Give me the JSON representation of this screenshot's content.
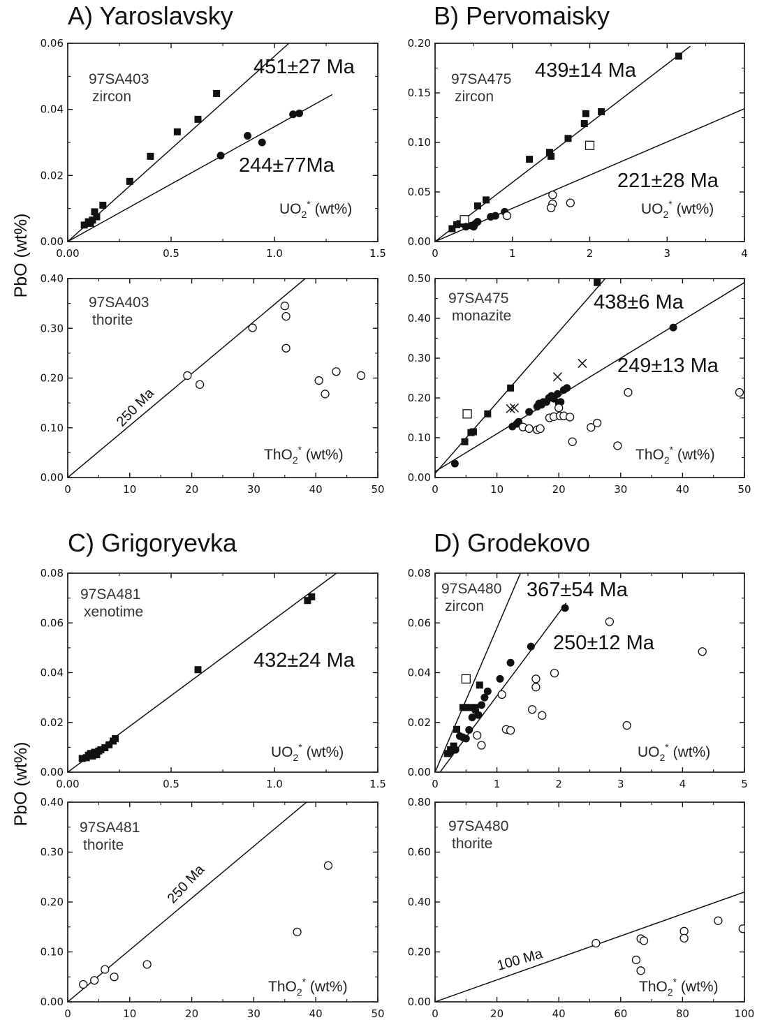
{
  "chart_data": [
    {
      "id": "A-U",
      "type": "scatter",
      "title": "A) Yaroslavsky",
      "sample": "97SA403",
      "mineral": "zircon",
      "xlabel": "UO2* (wt%)",
      "ylabel": "PbO (wt%)",
      "xlim": [
        0,
        1.5
      ],
      "ylim": [
        0,
        0.06
      ],
      "xticks": [
        "0.00",
        "0.5",
        "1.0",
        "1.5"
      ],
      "yticks": [
        "0.00",
        "0.02",
        "0.04",
        "0.06"
      ],
      "series": [
        {
          "marker": "filled-square",
          "points": [
            [
              0.08,
              0.005
            ],
            [
              0.1,
              0.006
            ],
            [
              0.11,
              0.0055
            ],
            [
              0.12,
              0.0065
            ],
            [
              0.13,
              0.009
            ],
            [
              0.14,
              0.0075
            ],
            [
              0.17,
              0.011
            ],
            [
              0.3,
              0.0182
            ],
            [
              0.4,
              0.0258
            ],
            [
              0.53,
              0.0332
            ],
            [
              0.63,
              0.037
            ],
            [
              0.72,
              0.0448
            ]
          ]
        },
        {
          "marker": "filled-circle",
          "points": [
            [
              0.74,
              0.026
            ],
            [
              0.87,
              0.032
            ],
            [
              0.94,
              0.03
            ],
            [
              1.09,
              0.0385
            ],
            [
              1.12,
              0.0388
            ]
          ]
        }
      ],
      "lines": [
        [
          [
            0,
            0
          ],
          [
            1.07,
            0.06
          ]
        ],
        [
          [
            0,
            0
          ],
          [
            1.28,
            0.0445
          ]
        ]
      ],
      "ages": [
        "451±27 Ma",
        "244±77Ma"
      ]
    },
    {
      "id": "B-U",
      "type": "scatter",
      "title": "B) Pervomaisky",
      "sample": "97SA475",
      "mineral": "zircon",
      "xlabel": "UO2* (wt%)",
      "ylabel": "PbO (wt%)",
      "xlim": [
        0,
        4
      ],
      "ylim": [
        0,
        0.2
      ],
      "xticks": [
        "0",
        "1",
        "2",
        "3",
        "4"
      ],
      "yticks": [
        "0.00",
        "0.05",
        "0.10",
        "0.15",
        "0.20"
      ],
      "series": [
        {
          "marker": "filled-square",
          "points": [
            [
              0.22,
              0.013
            ],
            [
              0.28,
              0.017
            ],
            [
              0.32,
              0.018
            ],
            [
              0.55,
              0.036
            ],
            [
              0.66,
              0.042
            ],
            [
              1.22,
              0.083
            ],
            [
              1.48,
              0.09
            ],
            [
              1.5,
              0.086
            ],
            [
              1.72,
              0.104
            ],
            [
              1.93,
              0.119
            ],
            [
              1.95,
              0.129
            ],
            [
              2.15,
              0.131
            ],
            [
              3.15,
              0.187
            ]
          ]
        },
        {
          "marker": "open-square",
          "points": [
            [
              0.38,
              0.022
            ],
            [
              2.0,
              0.097
            ]
          ]
        },
        {
          "marker": "filled-circle",
          "points": [
            [
              0.4,
              0.015
            ],
            [
              0.47,
              0.016
            ],
            [
              0.5,
              0.015
            ],
            [
              0.52,
              0.018
            ],
            [
              0.55,
              0.02
            ],
            [
              0.72,
              0.025
            ],
            [
              0.78,
              0.026
            ],
            [
              0.9,
              0.03
            ]
          ]
        },
        {
          "marker": "open-circle",
          "points": [
            [
              0.93,
              0.026
            ],
            [
              1.52,
              0.047
            ],
            [
              1.52,
              0.038
            ],
            [
              1.5,
              0.034
            ],
            [
              1.75,
              0.039
            ]
          ]
        }
      ],
      "lines": [
        [
          [
            0,
            0
          ],
          [
            3.3,
            0.197
          ]
        ],
        [
          [
            0,
            0
          ],
          [
            4,
            0.134
          ]
        ]
      ],
      "ages": [
        "439±14 Ma",
        "221±28 Ma"
      ]
    },
    {
      "id": "A-Th",
      "type": "scatter",
      "sample": "97SA403",
      "mineral": "thorite",
      "xlabel": "ThO2* (wt%)",
      "ylabel": "PbO (wt%)",
      "xlim": [
        0,
        50
      ],
      "ylim": [
        0,
        0.4
      ],
      "xticks": [
        "0",
        "10",
        "20",
        "30",
        "40",
        "50"
      ],
      "yticks": [
        "0.00",
        "0.10",
        "0.20",
        "0.30",
        "0.40"
      ],
      "series": [
        {
          "marker": "open-circle",
          "points": [
            [
              19.3,
              0.205
            ],
            [
              21.3,
              0.187
            ],
            [
              29.8,
              0.301
            ],
            [
              35,
              0.345
            ],
            [
              35.2,
              0.324
            ],
            [
              35.2,
              0.26
            ],
            [
              40.5,
              0.195
            ],
            [
              41.5,
              0.168
            ],
            [
              43.3,
              0.213
            ],
            [
              47.3,
              0.205
            ]
          ]
        }
      ],
      "lines": [
        [
          [
            0,
            0
          ],
          [
            38.3,
            0.4
          ]
        ]
      ],
      "reference_line_label": "250 Ma"
    },
    {
      "id": "B-Th",
      "type": "scatter",
      "sample": "97SA475",
      "mineral": "monazite",
      "xlabel": "ThO2* (wt%)",
      "ylabel": "PbO (wt%)",
      "xlim": [
        0,
        50
      ],
      "ylim": [
        0,
        0.5
      ],
      "xticks": [
        "0",
        "10",
        "20",
        "30",
        "40",
        "50"
      ],
      "yticks": [
        "0.00",
        "0.10",
        "0.20",
        "0.30",
        "0.40",
        "0.50"
      ],
      "series": [
        {
          "marker": "filled-square",
          "points": [
            [
              4.8,
              0.09
            ],
            [
              5.8,
              0.113
            ],
            [
              6.2,
              0.115
            ],
            [
              8.5,
              0.16
            ],
            [
              12.2,
              0.225
            ],
            [
              26.2,
              0.49
            ]
          ]
        },
        {
          "marker": "open-square",
          "points": [
            [
              5.2,
              0.16
            ]
          ]
        },
        {
          "marker": "filled-circle",
          "points": [
            [
              3.2,
              0.035
            ],
            [
              12.5,
              0.128
            ],
            [
              13.2,
              0.135
            ],
            [
              13.5,
              0.14
            ],
            [
              15.2,
              0.165
            ],
            [
              16.5,
              0.178
            ],
            [
              16.8,
              0.186
            ],
            [
              17.2,
              0.183
            ],
            [
              17.5,
              0.19
            ],
            [
              18,
              0.19
            ],
            [
              18.4,
              0.2
            ],
            [
              18.8,
              0.205
            ],
            [
              19.2,
              0.198
            ],
            [
              19.8,
              0.21
            ],
            [
              20,
              0.187
            ],
            [
              20.3,
              0.19
            ],
            [
              20.8,
              0.22
            ],
            [
              21.3,
              0.225
            ],
            [
              38.5,
              0.377
            ]
          ]
        },
        {
          "marker": "open-circle",
          "points": [
            [
              14.2,
              0.127
            ],
            [
              15.2,
              0.123
            ],
            [
              16.5,
              0.12
            ],
            [
              17,
              0.123
            ],
            [
              18.5,
              0.15
            ],
            [
              19.2,
              0.153
            ],
            [
              20,
              0.175
            ],
            [
              20.2,
              0.155
            ],
            [
              20.8,
              0.155
            ],
            [
              21.8,
              0.152
            ],
            [
              22.2,
              0.09
            ],
            [
              25.2,
              0.126
            ],
            [
              26.2,
              0.137
            ],
            [
              29.5,
              0.08
            ],
            [
              31.2,
              0.214
            ],
            [
              49.2,
              0.214
            ]
          ]
        },
        {
          "marker": "cross",
          "points": [
            [
              12.2,
              0.173
            ],
            [
              12.8,
              0.175
            ],
            [
              19.8,
              0.253
            ],
            [
              23.8,
              0.287
            ]
          ]
        }
      ],
      "lines": [
        [
          [
            0,
            0.01
          ],
          [
            27.5,
            0.5
          ]
        ],
        [
          [
            0,
            0.015
          ],
          [
            50,
            0.49
          ]
        ]
      ],
      "ages": [
        "438±6 Ma",
        "249±13 Ma"
      ]
    },
    {
      "id": "C-U",
      "type": "scatter",
      "title": "C) Grigoryevka",
      "sample": "97SA481",
      "mineral": "xenotime",
      "xlabel": "UO2* (wt%)",
      "ylabel": "PbO (wt%)",
      "xlim": [
        0,
        1.5
      ],
      "ylim": [
        0,
        0.08
      ],
      "xticks": [
        "0.00",
        "0.5",
        "1.0",
        "1.5"
      ],
      "yticks": [
        "0.00",
        "0.02",
        "0.04",
        "0.06",
        "0.08"
      ],
      "series": [
        {
          "marker": "filled-square",
          "points": [
            [
              0.07,
              0.0055
            ],
            [
              0.09,
              0.0058
            ],
            [
              0.1,
              0.0068
            ],
            [
              0.11,
              0.0075
            ],
            [
              0.12,
              0.0065
            ],
            [
              0.13,
              0.008
            ],
            [
              0.14,
              0.007
            ],
            [
              0.15,
              0.0085
            ],
            [
              0.16,
              0.009
            ],
            [
              0.18,
              0.0098
            ],
            [
              0.2,
              0.011
            ],
            [
              0.22,
              0.0125
            ],
            [
              0.23,
              0.0135
            ],
            [
              0.63,
              0.0412
            ],
            [
              1.16,
              0.069
            ],
            [
              1.18,
              0.0705
            ]
          ]
        }
      ],
      "lines": [
        [
          [
            0,
            0
          ],
          [
            1.3,
            0.08
          ]
        ]
      ],
      "ages": [
        "432±24 Ma"
      ]
    },
    {
      "id": "D-U",
      "type": "scatter",
      "title": "D) Grodekovo",
      "sample": "97SA480",
      "mineral": "zircon",
      "xlabel": "UO2* (wt%)",
      "ylabel": "PbO (wt%)",
      "xlim": [
        0,
        5
      ],
      "ylim": [
        0,
        0.08
      ],
      "xticks": [
        "0",
        "1",
        "2",
        "3",
        "4",
        "5"
      ],
      "yticks": [
        "0.00",
        "0.02",
        "0.04",
        "0.06",
        "0.08"
      ],
      "series": [
        {
          "marker": "filled-square",
          "points": [
            [
              0.2,
              0.0075
            ],
            [
              0.25,
              0.009
            ],
            [
              0.3,
              0.0105
            ],
            [
              0.35,
              0.0172
            ],
            [
              0.45,
              0.026
            ],
            [
              0.5,
              0.026
            ],
            [
              0.58,
              0.026
            ],
            [
              0.65,
              0.026
            ],
            [
              0.72,
              0.035
            ]
          ]
        },
        {
          "marker": "open-square",
          "points": [
            [
              0.5,
              0.0375
            ]
          ]
        },
        {
          "marker": "filled-circle",
          "points": [
            [
              0.25,
              0.008
            ],
            [
              0.3,
              0.0095
            ],
            [
              0.33,
              0.009
            ],
            [
              0.4,
              0.0145
            ],
            [
              0.45,
              0.014
            ],
            [
              0.5,
              0.0135
            ],
            [
              0.55,
              0.017
            ],
            [
              0.6,
              0.022
            ],
            [
              0.65,
              0.025
            ],
            [
              0.7,
              0.023
            ],
            [
              0.75,
              0.027
            ],
            [
              0.8,
              0.03
            ],
            [
              0.85,
              0.0325
            ],
            [
              1.05,
              0.0375
            ],
            [
              1.22,
              0.044
            ],
            [
              1.55,
              0.0505
            ],
            [
              2.1,
              0.066
            ]
          ]
        },
        {
          "marker": "open-circle",
          "points": [
            [
              0.68,
              0.0148
            ],
            [
              0.75,
              0.0108
            ],
            [
              1.08,
              0.0312
            ],
            [
              1.15,
              0.0172
            ],
            [
              1.22,
              0.0168
            ],
            [
              1.57,
              0.0252
            ],
            [
              1.63,
              0.0375
            ],
            [
              1.63,
              0.0342
            ],
            [
              1.73,
              0.0228
            ],
            [
              1.93,
              0.0398
            ],
            [
              2.82,
              0.0605
            ],
            [
              3.1,
              0.0188
            ],
            [
              4.32,
              0.0485
            ]
          ]
        }
      ],
      "lines": [
        [
          [
            0,
            0
          ],
          [
            1.38,
            0.08
          ]
        ],
        [
          [
            0.08,
            0
          ],
          [
            2.12,
            0.068
          ]
        ]
      ],
      "ages": [
        "367±54 Ma",
        "250±12 Ma"
      ]
    },
    {
      "id": "C-Th",
      "type": "scatter",
      "sample": "97SA481",
      "mineral": "thorite",
      "xlabel": "ThO2* (wt%)",
      "ylabel": "PbO (wt%)",
      "xlim": [
        0,
        50
      ],
      "ylim": [
        0,
        0.4
      ],
      "xticks": [
        "0",
        "10",
        "20",
        "30",
        "40",
        "50"
      ],
      "yticks": [
        "0.00",
        "0.10",
        "0.20",
        "0.30",
        "0.40"
      ],
      "series": [
        {
          "marker": "open-circle",
          "points": [
            [
              2.5,
              0.035
            ],
            [
              4.3,
              0.043
            ],
            [
              6,
              0.065
            ],
            [
              7.5,
              0.05
            ],
            [
              12.8,
              0.075
            ],
            [
              37,
              0.14
            ],
            [
              42,
              0.273
            ]
          ]
        }
      ],
      "lines": [
        [
          [
            0,
            0
          ],
          [
            38.5,
            0.4
          ]
        ]
      ],
      "reference_line_label": "250 Ma"
    },
    {
      "id": "D-Th",
      "type": "scatter",
      "sample": "97SA480",
      "mineral": "thorite",
      "xlabel": "ThO2* (wt%)",
      "ylabel": "PbO (wt%)",
      "xlim": [
        0,
        100
      ],
      "ylim": [
        0,
        0.8
      ],
      "xticks": [
        "0",
        "20",
        "40",
        "60",
        "80",
        "100"
      ],
      "yticks": [
        "0.00",
        "0.20",
        "0.40",
        "0.60",
        "0.80"
      ],
      "series": [
        {
          "marker": "open-circle",
          "points": [
            [
              52,
              0.235
            ],
            [
              65,
              0.168
            ],
            [
              66.5,
              0.125
            ],
            [
              66.5,
              0.253
            ],
            [
              67.5,
              0.245
            ],
            [
              80.5,
              0.283
            ],
            [
              80.5,
              0.255
            ],
            [
              91.5,
              0.325
            ],
            [
              99.5,
              0.293
            ]
          ]
        }
      ],
      "lines": [
        [
          [
            0,
            0
          ],
          [
            100,
            0.44
          ]
        ]
      ],
      "reference_line_label": "100 Ma"
    }
  ]
}
